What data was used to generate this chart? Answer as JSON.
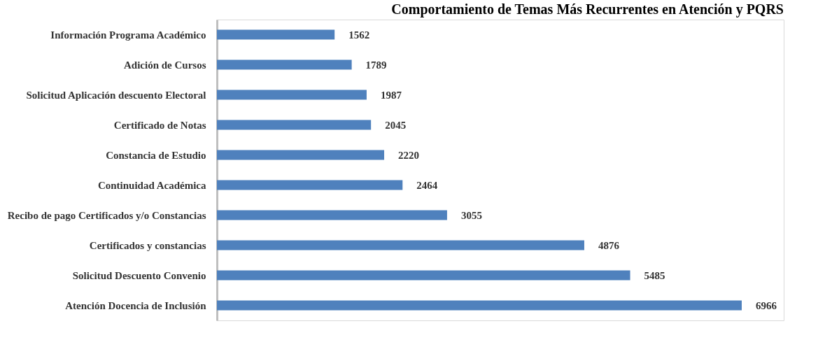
{
  "chart_data": {
    "type": "bar",
    "orientation": "horizontal",
    "title": "Comportamiento de Temas Más Recurrentes en Atención y PQRS",
    "categories": [
      "Información Programa Académico",
      "Adición de Cursos",
      "Solicitud Aplicación descuento Electoral",
      "Certificado de Notas",
      "Constancia de Estudio",
      "Continuidad Académica",
      "Recibo de pago Certificados y/o Constancias",
      "Certificados y constancias ",
      "Solicitud Descuento Convenio",
      "Atención Docencia de Inclusión"
    ],
    "values": [
      1562,
      1789,
      1987,
      2045,
      2220,
      2464,
      3055,
      4876,
      5485,
      6966
    ],
    "color": "#4f81bd",
    "data_labels": true,
    "grid": false
  }
}
